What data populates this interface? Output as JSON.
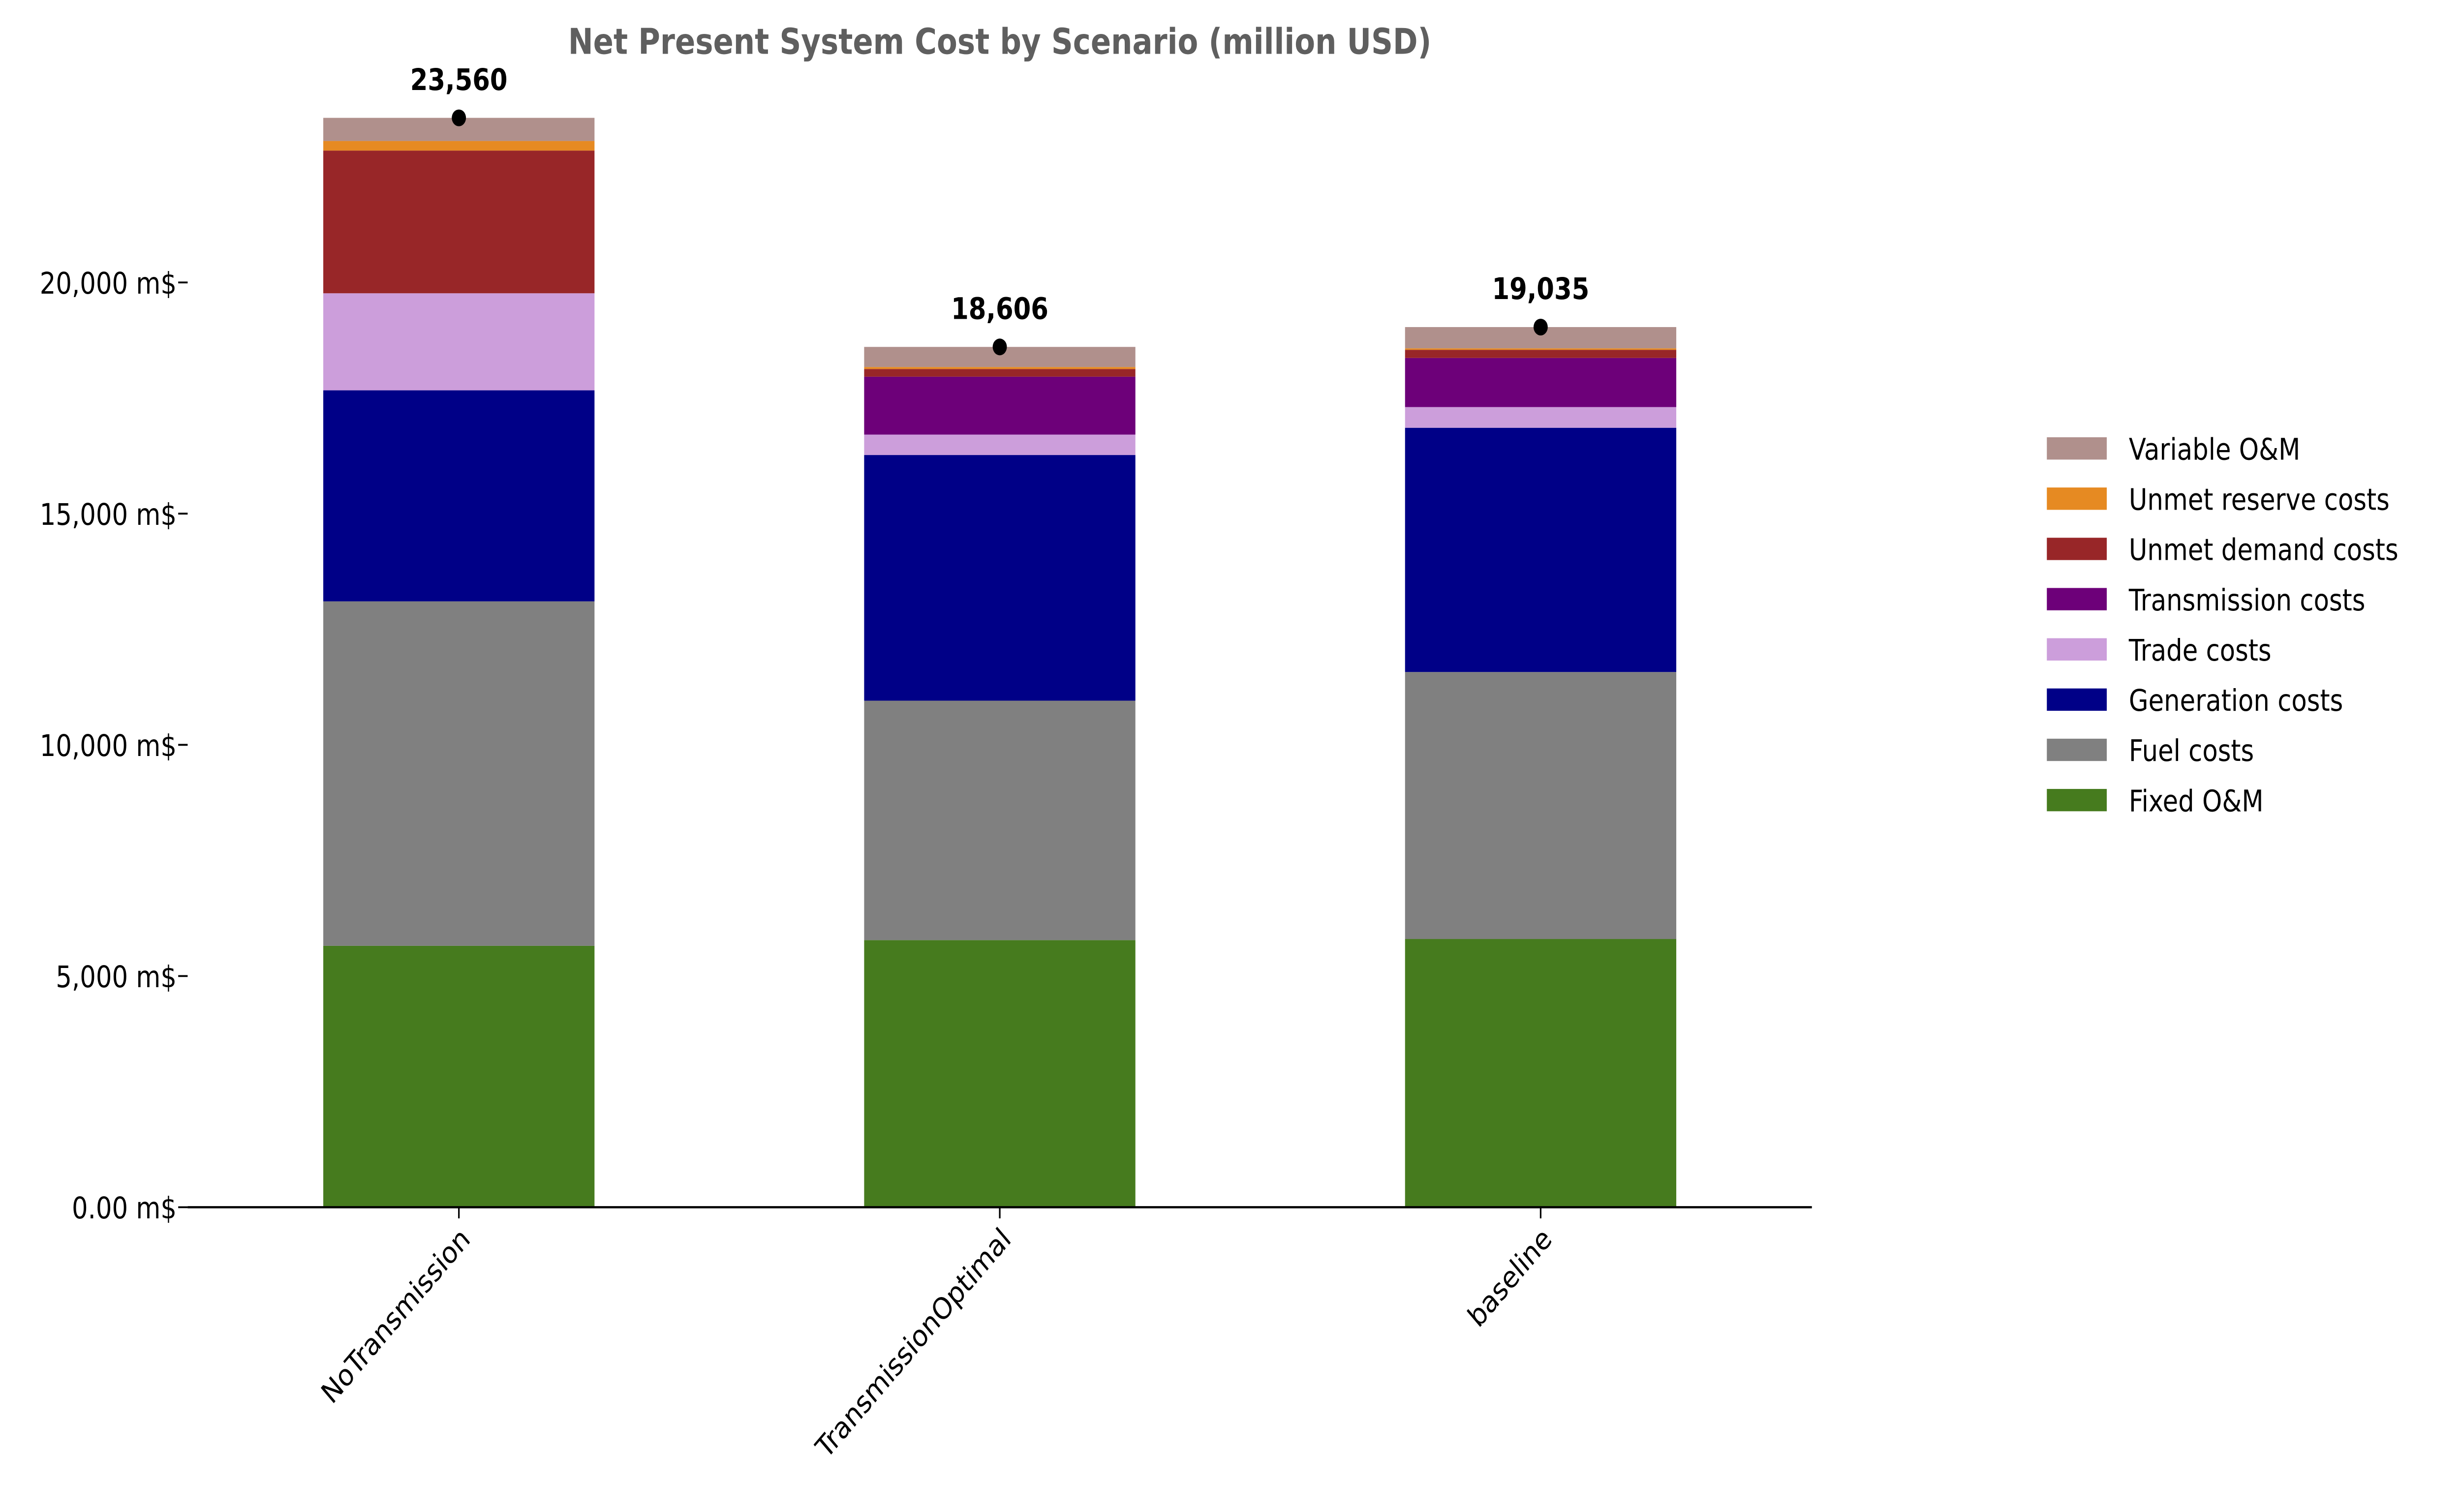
{
  "chart_data": {
    "type": "bar",
    "stacked": true,
    "title": "Net Present System Cost by Scenario (million USD)",
    "xlabel": "",
    "ylabel": "",
    "ylim": [
      0,
      24000
    ],
    "y_ticks": [
      0,
      5000,
      10000,
      15000,
      20000
    ],
    "y_tick_labels": [
      "0.00 m$",
      "5,000 m$",
      "10,000 m$",
      "15,000 m$",
      "20,000 m$"
    ],
    "grid": false,
    "legend_position": "right",
    "categories": [
      "NoTransmission",
      "TransmissionOptimal",
      "baseline"
    ],
    "series": [
      {
        "name": "Fixed O&M",
        "color": "#467b1e",
        "values": [
          5654,
          5777,
          5801
        ]
      },
      {
        "name": "Fuel costs",
        "color": "#808080",
        "values": [
          7449,
          5178,
          5774
        ]
      },
      {
        "name": "Generation costs",
        "color": "#000087",
        "values": [
          4564,
          5313,
          5282
        ]
      },
      {
        "name": "Trade costs",
        "color": "#cc9edb",
        "values": [
          2099,
          442,
          448
        ]
      },
      {
        "name": "Transmission costs",
        "color": "#6d0079",
        "values": [
          0,
          1252,
          1062
        ]
      },
      {
        "name": "Unmet demand costs",
        "color": "#982628",
        "values": [
          3086,
          166,
          176
        ]
      },
      {
        "name": "Unmet reserve costs",
        "color": "#e68a22",
        "values": [
          208,
          43,
          32
        ]
      },
      {
        "name": "Variable O&M",
        "color": "#b0908c",
        "values": [
          500,
          435,
          460
        ]
      }
    ],
    "totals": [
      23560,
      18606,
      19035
    ],
    "total_labels": [
      "23,560",
      "18,606",
      "19,035"
    ]
  }
}
